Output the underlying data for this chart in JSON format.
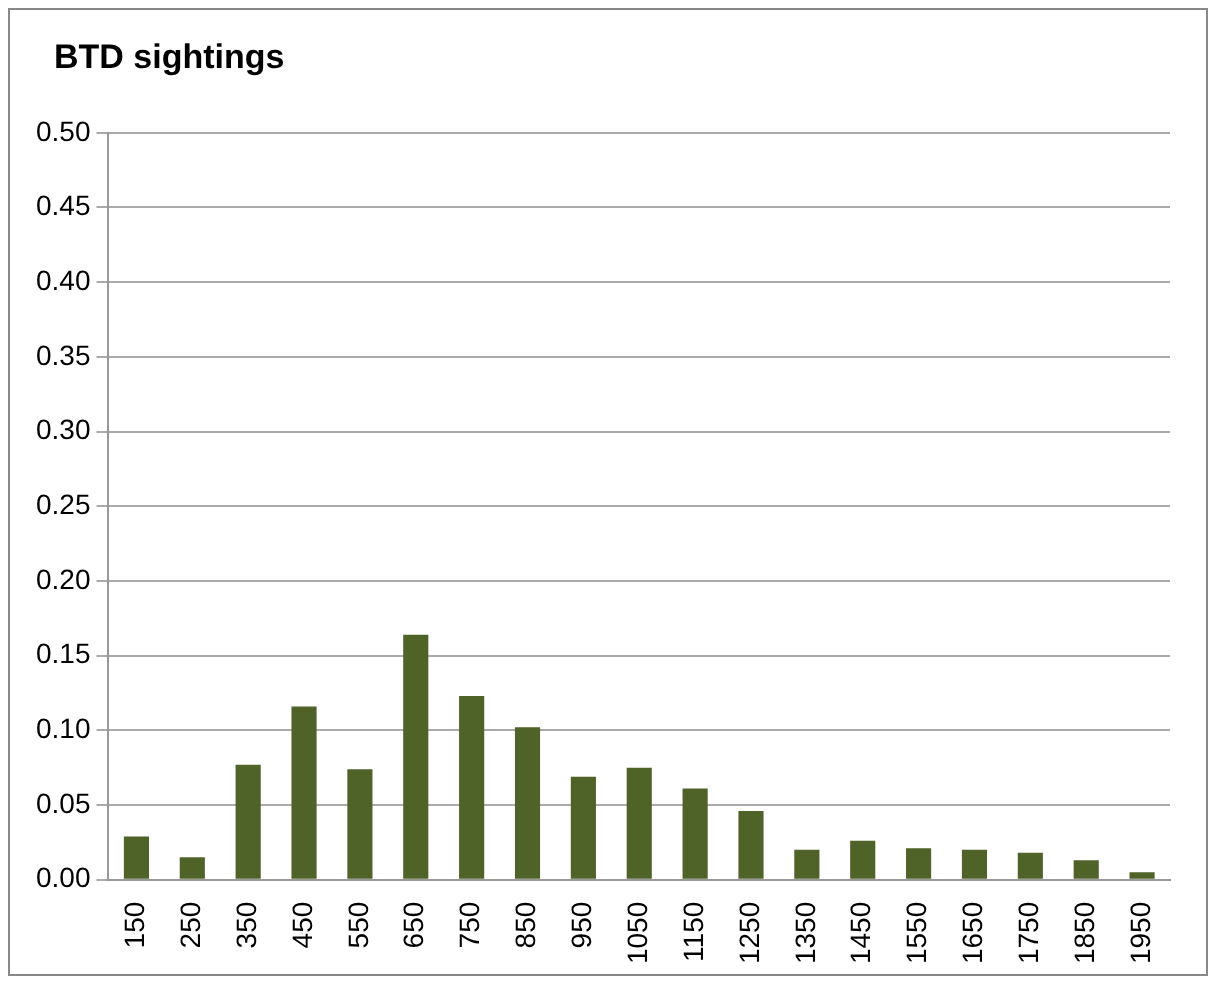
{
  "chart_data": {
    "type": "bar",
    "title": "BTD sightings",
    "categories": [
      "150",
      "250",
      "350",
      "450",
      "550",
      "650",
      "750",
      "850",
      "950",
      "1050",
      "1150",
      "1250",
      "1350",
      "1450",
      "1550",
      "1650",
      "1750",
      "1850",
      "1950"
    ],
    "values": [
      0.029,
      0.015,
      0.077,
      0.116,
      0.074,
      0.164,
      0.123,
      0.102,
      0.069,
      0.075,
      0.061,
      0.046,
      0.02,
      0.026,
      0.021,
      0.02,
      0.018,
      0.013,
      0.005
    ],
    "color": "#4f6228",
    "ylim": [
      0,
      0.5
    ],
    "yticks": [
      {
        "value": 0,
        "label": "0.00"
      },
      {
        "value": 0.05,
        "label": "0.05"
      },
      {
        "value": 0.1,
        "label": "0.10"
      },
      {
        "value": 0.15,
        "label": "0.15"
      },
      {
        "value": 0.2,
        "label": "0.20"
      },
      {
        "value": 0.25,
        "label": "0.25"
      },
      {
        "value": 0.3,
        "label": "0.30"
      },
      {
        "value": 0.35,
        "label": "0.35"
      },
      {
        "value": 0.4,
        "label": "0.40"
      },
      {
        "value": 0.45,
        "label": "0.45"
      },
      {
        "value": 0.5,
        "label": "0.50"
      }
    ],
    "grid": "y",
    "legend": false
  }
}
